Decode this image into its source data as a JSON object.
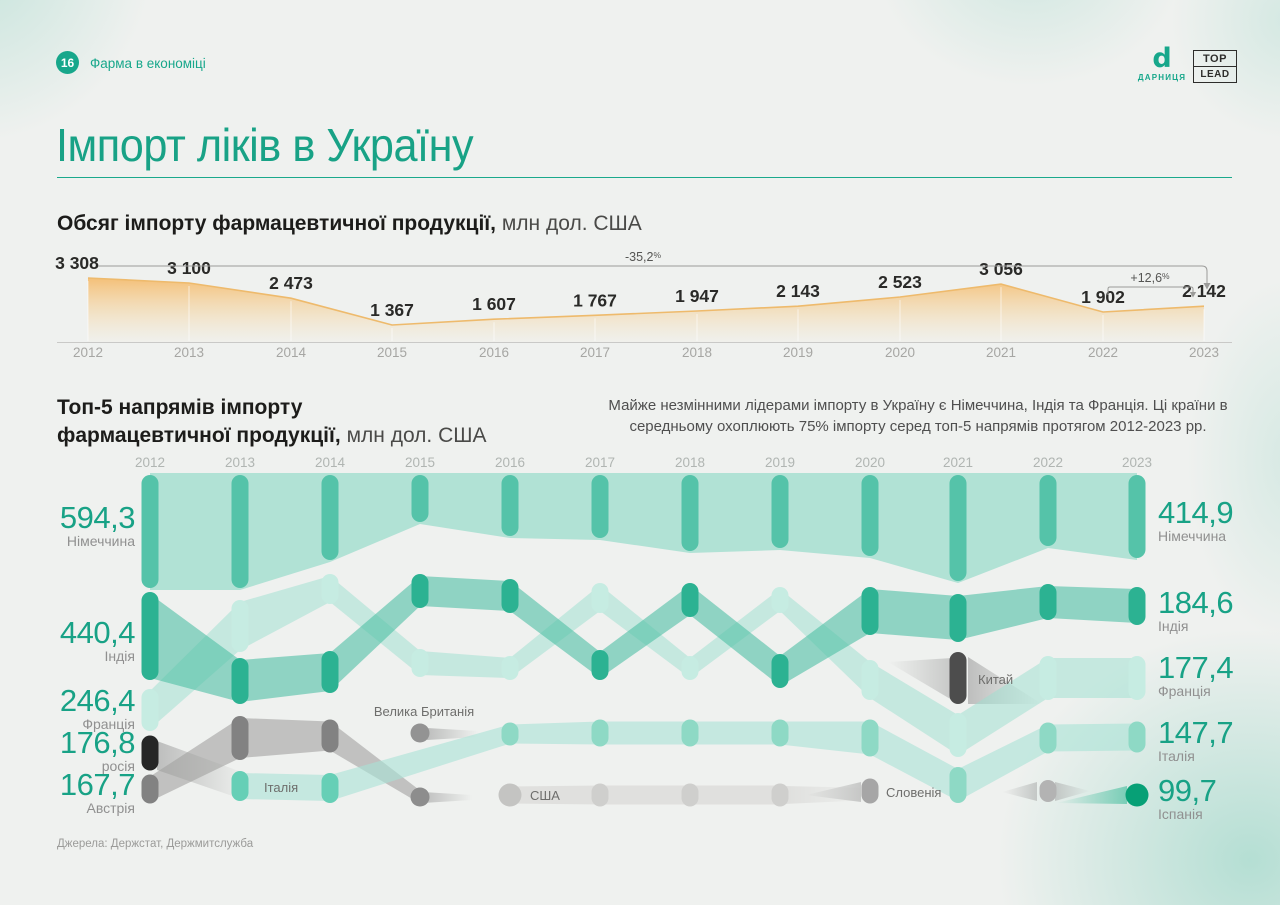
{
  "page": {
    "number": "16",
    "section_label": "Фарма в економіці",
    "title": "Імпорт ліків в Україну",
    "source": "Джерела: Держстат, Держмитслужба"
  },
  "logos": {
    "darnitsa_glyph": "d",
    "darnitsa_word": "ДАРНИЦЯ",
    "toplead_top": "TOP",
    "toplead_bottom": "LEAD"
  },
  "area_heading": {
    "bold": "Обсяг імпорту фармацевтичної продукції,",
    "unit": " млн дол. США"
  },
  "bump_heading": {
    "bold_line1": "Топ-5 напрямів імпорту",
    "bold_line2": "фармацевтичної продукції,",
    "unit": " млн дол. США"
  },
  "insight": "Майже незмінними лідерами імпорту в Україну є Німеччина, Індія та Франція. Ці країни в середньому охоплюють 75% імпорту серед топ-5 напрямів протягом 2012-2023 рр.",
  "chart_data": [
    {
      "type": "area",
      "title": "Обсяг імпорту фармацевтичної продукції, млн дол. США",
      "x": [
        "2012",
        "2013",
        "2014",
        "2015",
        "2016",
        "2017",
        "2018",
        "2019",
        "2020",
        "2021",
        "2022",
        "2023"
      ],
      "values": [
        3308,
        3100,
        2473,
        1367,
        1607,
        1767,
        1947,
        2143,
        2523,
        3056,
        1902,
        2142
      ],
      "value_labels": [
        "3 308",
        "3 100",
        "2 473",
        "1 367",
        "1 607",
        "1 767",
        "1 947",
        "2 143",
        "2 523",
        "3 056",
        "1 902",
        "2 142"
      ],
      "annotations": [
        {
          "label": "-35,2%",
          "from": "2012",
          "to": "2023"
        },
        {
          "label": "+12,6%",
          "from": "2022",
          "to": "2023"
        }
      ],
      "line_color": "#eeba6c",
      "fill_color": "#f6c178",
      "grid": false,
      "ylim": [
        1367,
        3308
      ]
    },
    {
      "type": "bump",
      "title": "Топ-5 напрямів імпорту фармацевтичної продукції, млн дол. США",
      "years": [
        "2012",
        "2013",
        "2014",
        "2015",
        "2016",
        "2017",
        "2018",
        "2019",
        "2020",
        "2021",
        "2022",
        "2023"
      ],
      "left_labels": [
        {
          "value": "594,3",
          "country": "Німеччина"
        },
        {
          "value": "440,4",
          "country": "Індія"
        },
        {
          "value": "246,4",
          "country": "Франція"
        },
        {
          "value": "176,8",
          "country": "росія"
        },
        {
          "value": "167,7",
          "country": "Австрія"
        }
      ],
      "right_labels": [
        {
          "value": "414,9",
          "country": "Німеччина"
        },
        {
          "value": "184,6",
          "country": "Індія"
        },
        {
          "value": "177,4",
          "country": "Франція"
        },
        {
          "value": "147,7",
          "country": "Італія"
        },
        {
          "value": "99,7",
          "country": "Іспанія"
        }
      ],
      "series": [
        {
          "name": "Німеччина",
          "pill": "#55c3a9",
          "band": "#a8dfd2",
          "rows": [
            1,
            1,
            1,
            1,
            1,
            1,
            1,
            1,
            1,
            1,
            1,
            1
          ]
        },
        {
          "name": "Індія",
          "pill": "#2cb292",
          "band": "#4fc0a5",
          "rows": [
            2,
            3,
            3,
            2,
            2,
            3,
            2,
            3,
            2,
            2,
            2,
            2
          ]
        },
        {
          "name": "Франція",
          "pill": "#c6ece2",
          "band": "#9cdfd0",
          "rows": [
            3,
            2,
            2,
            3,
            3,
            2,
            3,
            2,
            3,
            4,
            3,
            3
          ]
        },
        {
          "name": "росія",
          "pill": "#262626",
          "band": "#9c9c9c",
          "rows": [
            4,
            null,
            null,
            null,
            null,
            null,
            null,
            null,
            null,
            null,
            null,
            null
          ]
        },
        {
          "name": "Австрія",
          "pill": "#828282",
          "band": "#a2a2a0",
          "rows": [
            5,
            4,
            4,
            5,
            null,
            null,
            null,
            null,
            null,
            null,
            null,
            null
          ]
        },
        {
          "name": "Італія",
          "pill": "#8ed9c5",
          "band": "#a9e2d5",
          "rows": [
            null,
            5,
            5,
            null,
            4,
            4,
            4,
            4,
            4,
            5,
            4,
            4
          ]
        },
        {
          "name": "Велика Британія",
          "pill": "#939393",
          "band": "#bdbdbb",
          "rows": [
            null,
            null,
            null,
            4,
            null,
            null,
            null,
            null,
            null,
            null,
            null,
            null
          ]
        },
        {
          "name": "США",
          "pill": "#cfcfcd",
          "band": "#dcdcda",
          "rows": [
            null,
            null,
            null,
            null,
            5,
            5,
            5,
            5,
            null,
            null,
            null,
            null
          ]
        },
        {
          "name": "Китай",
          "pill": "#4d4d4d",
          "band": "#ababab",
          "rows": [
            null,
            null,
            null,
            null,
            null,
            null,
            null,
            null,
            null,
            3,
            null,
            null
          ]
        },
        {
          "name": "Словенія",
          "pill": "#a6a6a6",
          "band": "#c4c4c2",
          "rows": [
            null,
            null,
            null,
            null,
            null,
            null,
            null,
            null,
            5,
            null,
            5,
            null
          ]
        },
        {
          "name": "Іспанія",
          "pill": "#07a076",
          "band": "#3cbb99",
          "rows": [
            null,
            null,
            null,
            null,
            null,
            null,
            null,
            null,
            null,
            null,
            null,
            5
          ]
        }
      ],
      "inline_labels": [
        "Італія",
        "Велика Британія",
        "США",
        "Китай",
        "Словенія"
      ]
    }
  ]
}
